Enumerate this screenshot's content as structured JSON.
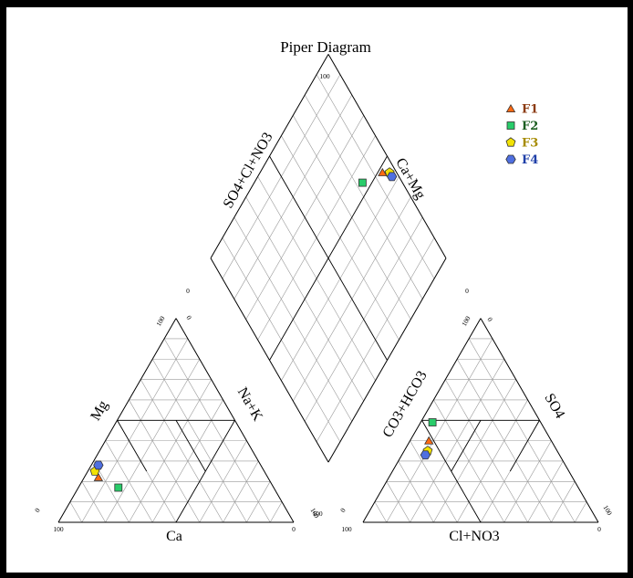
{
  "title": "Piper Diagram",
  "labels": {
    "cation_left": "Mg",
    "cation_bottom": "Ca",
    "cation_right": "Na+K",
    "anion_left": "CO3+HCO3",
    "anion_bottom": "Cl+NO3",
    "anion_right": "SO4",
    "diamond_left": "SO4+Cl+NO3",
    "diamond_right": "Ca+Mg"
  },
  "ticks": {
    "cation": [
      "100",
      "0",
      "0",
      "100",
      "100",
      "0"
    ],
    "anion": [
      "100",
      "0",
      "0",
      "100",
      "100",
      "0"
    ],
    "diamond": [
      "100",
      "0",
      "0",
      "100"
    ]
  },
  "legend": [
    {
      "name": "F1",
      "marker": "triangle",
      "fill": "#ff6a13",
      "text_color": "#8b3a0f"
    },
    {
      "name": "F2",
      "marker": "square",
      "fill": "#29cc6a",
      "text_color": "#1b5e20"
    },
    {
      "name": "F3",
      "marker": "pentagon",
      "fill": "#f2e205",
      "text_color": "#a68b00"
    },
    {
      "name": "F4",
      "marker": "hexagon",
      "fill": "#4f6fe0",
      "text_color": "#1f3fa8"
    }
  ],
  "chart_data": {
    "type": "scatter",
    "diagram": "piper",
    "grid_step_percent": 10,
    "series": [
      {
        "name": "F1",
        "cations": {
          "Ca": 72,
          "Mg": 22,
          "NaK": 6
        },
        "anions": {
          "CO3HCO3": 52,
          "SO4": 40,
          "ClNO3": 8
        }
      },
      {
        "name": "F2",
        "cations": {
          "Ca": 66,
          "Mg": 17,
          "NaK": 17
        },
        "anions": {
          "CO3HCO3": 46,
          "SO4": 49,
          "ClNO3": 5
        }
      },
      {
        "name": "F3",
        "cations": {
          "Ca": 72,
          "Mg": 25,
          "NaK": 3
        },
        "anions": {
          "CO3HCO3": 55,
          "SO4": 35,
          "ClNO3": 10
        }
      },
      {
        "name": "F4",
        "cations": {
          "Ca": 69,
          "Mg": 28,
          "NaK": 3
        },
        "anions": {
          "CO3HCO3": 57,
          "SO4": 33,
          "ClNO3": 10
        }
      }
    ]
  }
}
